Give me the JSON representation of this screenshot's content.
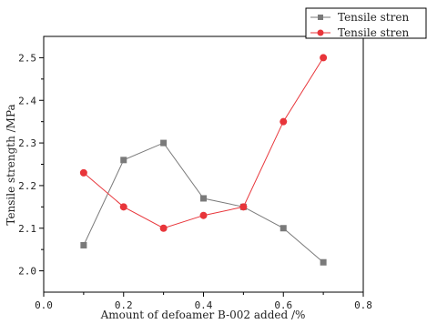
{
  "chart_data": {
    "type": "line",
    "title": "",
    "xlabel": "Amount of defoamer B-002 added /%",
    "ylabel": "Tensile strength /MPa",
    "xlim": [
      0.0,
      0.8
    ],
    "ylim": [
      1.95,
      2.55
    ],
    "x_ticks": [
      "0.0",
      "0.2",
      "0.4",
      "0.6",
      "0.8"
    ],
    "y_ticks": [
      "2.0",
      "2.1",
      "2.2",
      "2.3",
      "2.4",
      "2.5"
    ],
    "grid": false,
    "legend_position": "top-right",
    "series": [
      {
        "name": "Tensile stren",
        "marker": "square",
        "color": "#7a7a7a",
        "x": [
          0.1,
          0.2,
          0.3,
          0.4,
          0.5,
          0.6,
          0.7
        ],
        "y": [
          2.06,
          2.26,
          2.3,
          2.17,
          2.15,
          2.1,
          2.02
        ]
      },
      {
        "name": "Tensile stren",
        "marker": "circle",
        "color": "#e8353a",
        "x": [
          0.1,
          0.2,
          0.3,
          0.4,
          0.5,
          0.6,
          0.7
        ],
        "y": [
          2.23,
          2.15,
          2.1,
          2.13,
          2.15,
          2.35,
          2.5
        ]
      }
    ]
  }
}
